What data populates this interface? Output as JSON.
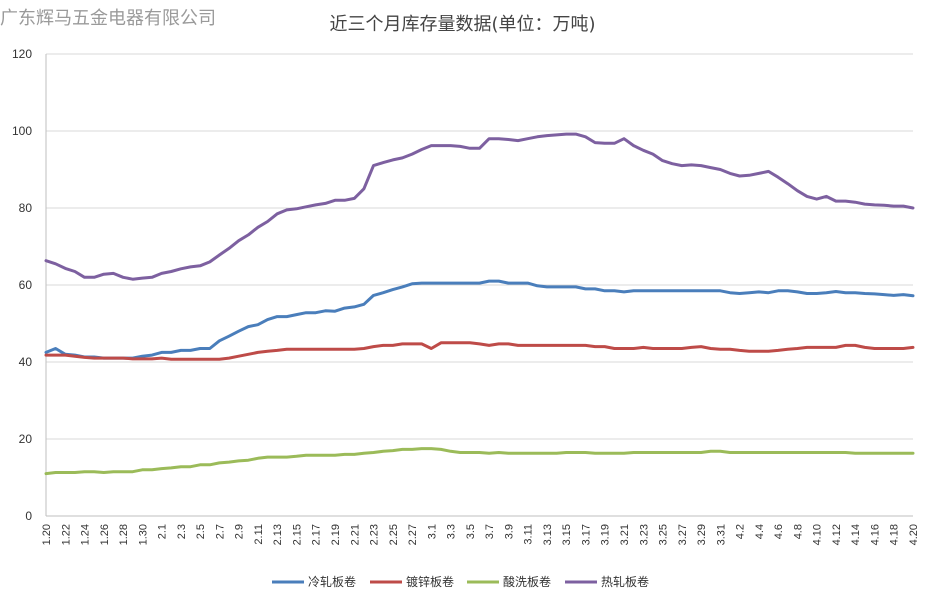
{
  "watermark": "广东辉马五金电器有限公司",
  "chart_data": {
    "type": "line",
    "title": "近三个月库存量数据(单位：万吨)",
    "xlabel": "",
    "ylabel": "",
    "ylim": [
      0,
      120
    ],
    "yticks": [
      0,
      20,
      40,
      60,
      80,
      100,
      120
    ],
    "grid": true,
    "legend_position": "bottom",
    "x": [
      "1.20",
      "1.21",
      "1.22",
      "1.23",
      "1.24",
      "1.25",
      "1.26",
      "1.27",
      "1.28",
      "1.29",
      "1.30",
      "1.31",
      "2.1",
      "2.2",
      "2.3",
      "2.4",
      "2.5",
      "2.6",
      "2.7",
      "2.8",
      "2.9",
      "2.10",
      "2.11",
      "2.12",
      "2.13",
      "2.14",
      "2.15",
      "2.16",
      "2.17",
      "2.18",
      "2.19",
      "2.20",
      "2.21",
      "2.22",
      "2.23",
      "2.24",
      "2.25",
      "2.26",
      "2.27",
      "2.28",
      "3.1",
      "3.2",
      "3.3",
      "3.4",
      "3.5",
      "3.6",
      "3.7",
      "3.8",
      "3.9",
      "3.10",
      "3.11",
      "3.12",
      "3.13",
      "3.14",
      "3.15",
      "3.16",
      "3.17",
      "3.18",
      "3.19",
      "3.20",
      "3.21",
      "3.22",
      "3.23",
      "3.24",
      "3.25",
      "3.26",
      "3.27",
      "3.28",
      "3.29",
      "3.30",
      "3.31",
      "4.1",
      "4.2",
      "4.3",
      "4.4",
      "4.5",
      "4.6",
      "4.7",
      "4.8",
      "4.9",
      "4.10",
      "4.11",
      "4.12",
      "4.13",
      "4.14",
      "4.15",
      "4.16",
      "4.17",
      "4.18",
      "4.19",
      "4.20"
    ],
    "xtick_labels": [
      "1.20",
      "1.22",
      "1.24",
      "1.26",
      "1.28",
      "1.30",
      "2.1",
      "2.3",
      "2.5",
      "2.7",
      "2.9",
      "2.11",
      "2.13",
      "2.15",
      "2.17",
      "2.19",
      "2.21",
      "2.23",
      "2.25",
      "2.27",
      "3.1",
      "3.3",
      "3.5",
      "3.7",
      "3.9",
      "3.11",
      "3.13",
      "3.15",
      "3.17",
      "3.19",
      "3.21",
      "3.23",
      "3.25",
      "3.27",
      "3.29",
      "3.31",
      "4.2",
      "4.4",
      "4.6",
      "4.8",
      "4.10",
      "4.12",
      "4.14",
      "4.16",
      "4.18",
      "4.20"
    ],
    "series": [
      {
        "name": "冷轧板卷",
        "color": "#4a7ebb",
        "values": [
          42.5,
          43.5,
          42.0,
          41.8,
          41.3,
          41.3,
          41.0,
          41.0,
          41.0,
          41.0,
          41.5,
          41.8,
          42.5,
          42.5,
          43.0,
          43.0,
          43.5,
          43.5,
          45.5,
          46.7,
          48.0,
          49.2,
          49.7,
          51.0,
          51.8,
          51.8,
          52.3,
          52.8,
          52.8,
          53.3,
          53.2,
          54.0,
          54.3,
          55.0,
          57.3,
          58.0,
          58.8,
          59.5,
          60.3,
          60.5,
          60.5,
          60.5,
          60.5,
          60.5,
          60.5,
          60.5,
          61.0,
          61.0,
          60.5,
          60.5,
          60.5,
          59.8,
          59.5,
          59.5,
          59.5,
          59.5,
          59.0,
          59.0,
          58.5,
          58.5,
          58.2,
          58.5,
          58.5,
          58.5,
          58.5,
          58.5,
          58.5,
          58.5,
          58.5,
          58.5,
          58.5,
          58.0,
          57.8,
          58.0,
          58.2,
          58.0,
          58.5,
          58.5,
          58.2,
          57.8,
          57.8,
          58.0,
          58.3,
          58.0,
          58.0,
          57.8,
          57.7,
          57.5,
          57.3,
          57.5,
          57.2
        ]
      },
      {
        "name": "镀锌板卷",
        "color": "#be4b48",
        "values": [
          41.8,
          41.8,
          41.8,
          41.5,
          41.2,
          41.0,
          41.0,
          41.0,
          41.0,
          40.8,
          40.8,
          40.8,
          41.0,
          40.7,
          40.7,
          40.7,
          40.7,
          40.7,
          40.7,
          41.0,
          41.5,
          42.0,
          42.5,
          42.8,
          43.0,
          43.3,
          43.3,
          43.3,
          43.3,
          43.3,
          43.3,
          43.3,
          43.3,
          43.5,
          44.0,
          44.3,
          44.3,
          44.7,
          44.7,
          44.7,
          43.5,
          45.0,
          45.0,
          45.0,
          45.0,
          44.7,
          44.3,
          44.7,
          44.7,
          44.3,
          44.3,
          44.3,
          44.3,
          44.3,
          44.3,
          44.3,
          44.3,
          44.0,
          44.0,
          43.5,
          43.5,
          43.5,
          43.8,
          43.5,
          43.5,
          43.5,
          43.5,
          43.8,
          44.0,
          43.5,
          43.3,
          43.3,
          43.0,
          42.8,
          42.8,
          42.8,
          43.0,
          43.3,
          43.5,
          43.8,
          43.8,
          43.8,
          43.8,
          44.3,
          44.3,
          43.8,
          43.5,
          43.5,
          43.5,
          43.5,
          43.8
        ]
      },
      {
        "name": "酸洗板卷",
        "color": "#9bbb59",
        "values": [
          11.0,
          11.3,
          11.3,
          11.3,
          11.5,
          11.5,
          11.3,
          11.5,
          11.5,
          11.5,
          12.0,
          12.0,
          12.3,
          12.5,
          12.8,
          12.8,
          13.3,
          13.3,
          13.8,
          14.0,
          14.3,
          14.5,
          15.0,
          15.3,
          15.3,
          15.3,
          15.5,
          15.8,
          15.8,
          15.8,
          15.8,
          16.0,
          16.0,
          16.3,
          16.5,
          16.8,
          17.0,
          17.3,
          17.3,
          17.5,
          17.5,
          17.3,
          16.8,
          16.5,
          16.5,
          16.5,
          16.3,
          16.5,
          16.3,
          16.3,
          16.3,
          16.3,
          16.3,
          16.3,
          16.5,
          16.5,
          16.5,
          16.3,
          16.3,
          16.3,
          16.3,
          16.5,
          16.5,
          16.5,
          16.5,
          16.5,
          16.5,
          16.5,
          16.5,
          16.8,
          16.8,
          16.5,
          16.5,
          16.5,
          16.5,
          16.5,
          16.5,
          16.5,
          16.5,
          16.5,
          16.5,
          16.5,
          16.5,
          16.5,
          16.3,
          16.3,
          16.3,
          16.3,
          16.3,
          16.3,
          16.3
        ]
      },
      {
        "name": "热轧板卷",
        "color": "#7d60a0",
        "values": [
          66.3,
          65.5,
          64.3,
          63.5,
          62.0,
          62.0,
          62.8,
          63.0,
          62.0,
          61.5,
          61.8,
          62.0,
          63.0,
          63.5,
          64.2,
          64.7,
          65.0,
          66.0,
          67.8,
          69.5,
          71.5,
          73.0,
          75.0,
          76.5,
          78.5,
          79.5,
          79.8,
          80.3,
          80.8,
          81.2,
          82.0,
          82.0,
          82.5,
          85.0,
          91.0,
          91.8,
          92.5,
          93.0,
          94.0,
          95.2,
          96.2,
          96.2,
          96.2,
          96.0,
          95.5,
          95.5,
          98.0,
          98.0,
          97.8,
          97.5,
          98.0,
          98.5,
          98.8,
          99.0,
          99.2,
          99.2,
          98.5,
          97.0,
          96.8,
          96.8,
          98.0,
          96.2,
          95.0,
          94.0,
          92.3,
          91.5,
          91.0,
          91.2,
          91.0,
          90.5,
          90.0,
          89.0,
          88.3,
          88.5,
          89.0,
          89.5,
          88.0,
          86.3,
          84.5,
          83.0,
          82.3,
          83.0,
          81.8,
          81.8,
          81.5,
          81.0,
          80.8,
          80.7,
          80.5,
          80.5,
          80.0
        ]
      }
    ]
  }
}
